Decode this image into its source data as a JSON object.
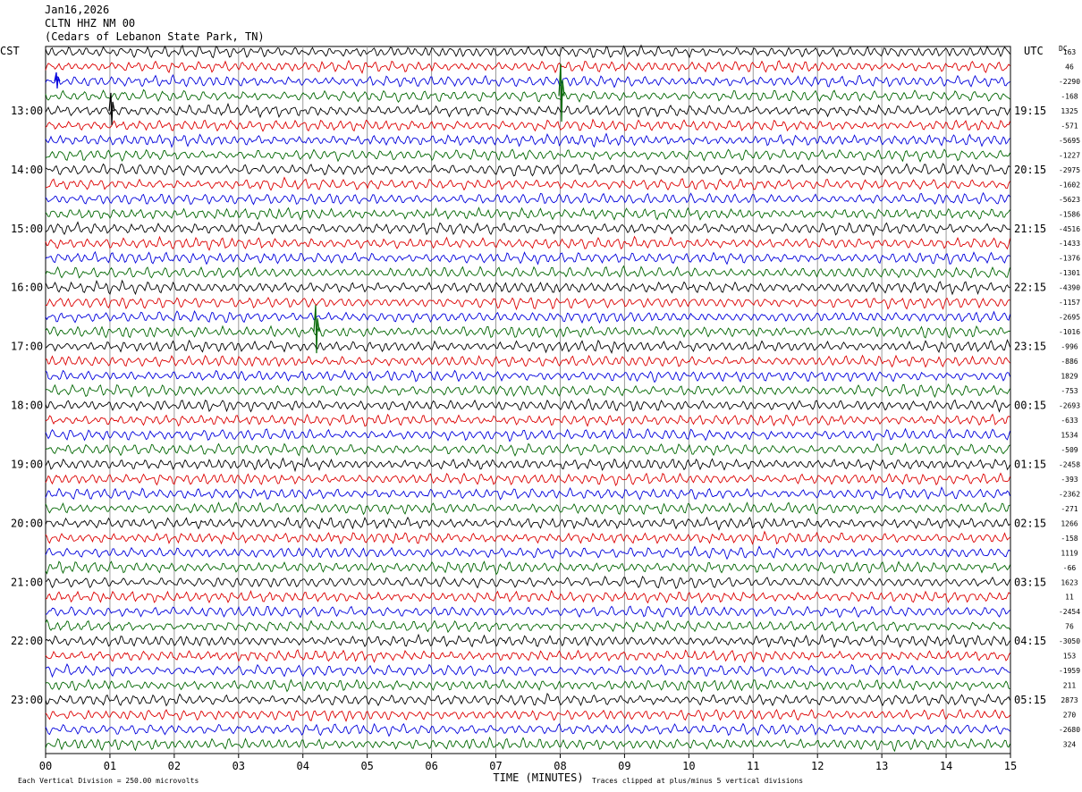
{
  "header": {
    "date": "Jan16,2026",
    "station": "CLTN HHZ NM 00",
    "location": "(Cedars of Lebanon State Park, TN)"
  },
  "chart_data": {
    "type": "line",
    "title": "",
    "xlabel": "TIME (MINUTES)",
    "left_timezone": "CST",
    "right_timezone": "UTC",
    "dc_label": "DC",
    "x_ticks": [
      "00",
      "01",
      "02",
      "03",
      "04",
      "05",
      "06",
      "07",
      "08",
      "09",
      "10",
      "11",
      "12",
      "13",
      "14",
      "15"
    ],
    "xlim": [
      0,
      15
    ],
    "left_hour_labels": [
      "13:00",
      "14:00",
      "15:00",
      "16:00",
      "17:00",
      "18:00",
      "19:00",
      "20:00",
      "21:00",
      "22:00",
      "23:00"
    ],
    "right_hour_labels": [
      "19:15",
      "20:15",
      "21:15",
      "22:15",
      "23:15",
      "00:15",
      "01:15",
      "02:15",
      "03:15",
      "04:15",
      "05:15"
    ],
    "trace_colors": [
      "#000000",
      "#dd0000",
      "#0000dd",
      "#006600"
    ],
    "grid": true,
    "dc_offsets": [
      "163",
      "46",
      "-2290",
      "-168",
      "1325",
      "-571",
      "-5695",
      "-1227",
      "-2975",
      "-1602",
      "-5623",
      "-1586",
      "-4516",
      "-1433",
      "-1376",
      "-1301",
      "-4390",
      "-1157",
      "-2695",
      "-1016",
      "-996",
      "-886",
      "1829",
      "-753",
      "-2693",
      "-633",
      "1534",
      "-509",
      "-2458",
      "-393",
      "-2362",
      "-271",
      "1266",
      "-158",
      "1119",
      "-66",
      "1623",
      "11",
      "-2454",
      "76",
      "-3050",
      "153",
      "-1959",
      "211",
      "2873",
      "270",
      "-2680",
      "324"
    ],
    "footer": {
      "scale_note": "Each Vertical Division =  250.00 microvolts",
      "clip_note": "Traces clipped at plus/minus 5 vertical divisions"
    }
  }
}
